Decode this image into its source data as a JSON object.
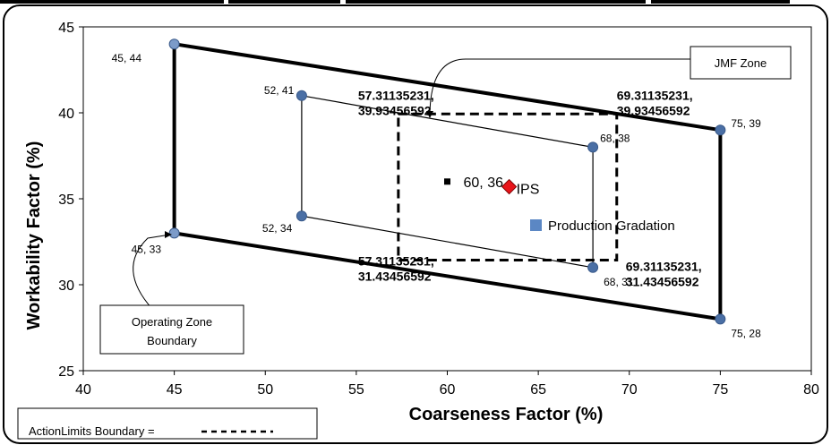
{
  "chart_data": {
    "type": "scatter",
    "xlabel": "Coarseness Factor (%)",
    "ylabel": "Workability Factor (%)",
    "xlim": [
      40,
      80
    ],
    "ylim": [
      25,
      45
    ],
    "xticks": [
      "40",
      "45",
      "50",
      "55",
      "60",
      "65",
      "70",
      "75",
      "80"
    ],
    "yticks": [
      "25",
      "30",
      "35",
      "40",
      "45"
    ],
    "operating_zone": {
      "points": [
        {
          "x": 45,
          "y": 44,
          "label": "45, 44"
        },
        {
          "x": 75,
          "y": 39,
          "label": "75, 39"
        },
        {
          "x": 75,
          "y": 28,
          "label": "75, 28"
        },
        {
          "x": 45,
          "y": 33,
          "label": "45, 33"
        }
      ]
    },
    "jmf_zone": {
      "points": [
        {
          "x": 52,
          "y": 41,
          "label": "52, 41"
        },
        {
          "x": 68,
          "y": 38,
          "label": "68, 38"
        },
        {
          "x": 68,
          "y": 31,
          "label": "68, 31"
        },
        {
          "x": 52,
          "y": 34,
          "label": "52, 34"
        }
      ]
    },
    "action_limits": {
      "points": [
        {
          "x": 57.31135231,
          "y": 39.93456592,
          "label_top": "57.31135231,",
          "label_bottom": "39.93456592"
        },
        {
          "x": 69.31135231,
          "y": 39.93456592,
          "label_top": "69.31135231,",
          "label_bottom": "39.93456592"
        },
        {
          "x": 69.31135231,
          "y": 31.43456592,
          "label_top": "69.31135231,",
          "label_bottom": "31.43456592"
        },
        {
          "x": 57.31135231,
          "y": 31.43456592,
          "label_top": "57.31135231,",
          "label_bottom": "31.43456592"
        }
      ]
    },
    "target": {
      "x": 60,
      "y": 36,
      "label": "60, 36"
    },
    "ips": {
      "x": 63.4,
      "y": 35.7,
      "label": "IPS"
    },
    "legend": {
      "label": "Production Gradation",
      "color": "#5b87c4"
    },
    "callouts": {
      "jmf": "JMF Zone",
      "operating_line1": "Operating Zone",
      "operating_line2": "Boundary",
      "action_limits": "ActionLimits Boundary ="
    }
  },
  "colors": {
    "point": "#4a6fa5",
    "ips": "#e8141a",
    "legend": "#5b87c4"
  }
}
